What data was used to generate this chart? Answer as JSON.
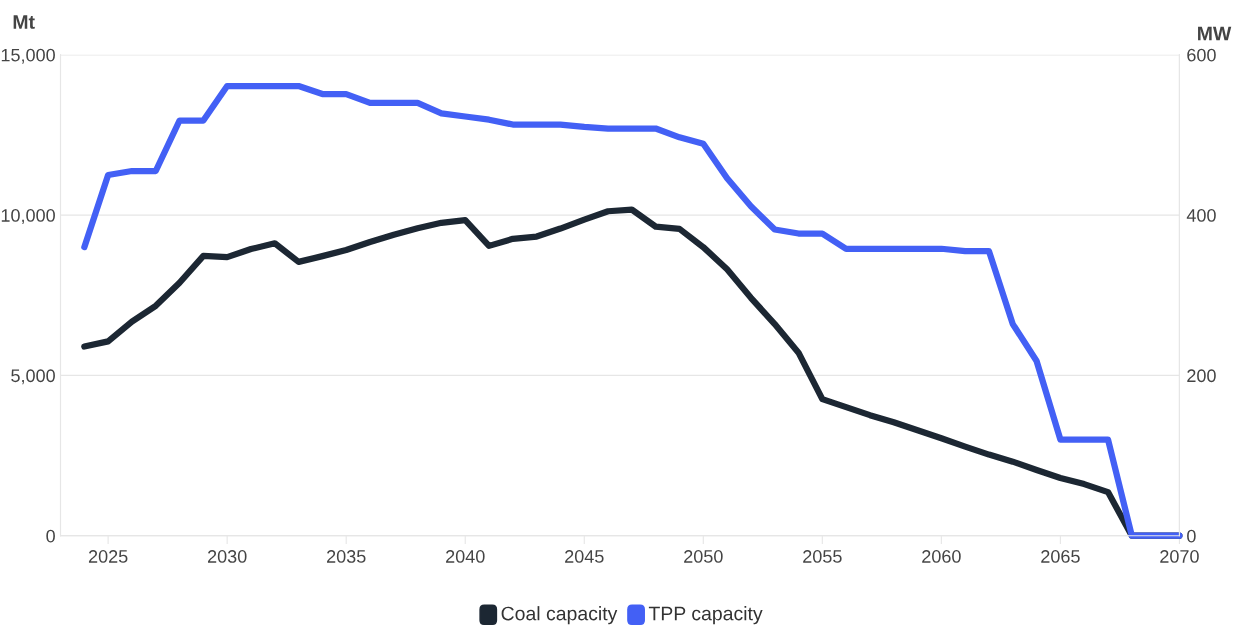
{
  "chart_data": {
    "type": "line",
    "ylabel": "Mt",
    "y2label": "MW",
    "x": [
      2024,
      2025,
      2026,
      2027,
      2028,
      2029,
      2030,
      2031,
      2032,
      2033,
      2034,
      2035,
      2036,
      2037,
      2038,
      2039,
      2040,
      2041,
      2042,
      2043,
      2044,
      2045,
      2046,
      2047,
      2048,
      2049,
      2050,
      2051,
      2052,
      2053,
      2054,
      2055,
      2056,
      2057,
      2058,
      2059,
      2060,
      2061,
      2062,
      2063,
      2064,
      2065,
      2066,
      2067,
      2068,
      2069,
      2070
    ],
    "series": [
      {
        "name": "Coal capacity",
        "color": "#1c2733",
        "values": [
          5900,
          6060,
          6680,
          7170,
          7890,
          8730,
          8690,
          8940,
          9120,
          8540,
          8720,
          8910,
          9160,
          9390,
          9590,
          9760,
          9840,
          9040,
          9260,
          9330,
          9580,
          9860,
          10120,
          10170,
          9640,
          9570,
          9000,
          8310,
          7420,
          6600,
          5710,
          4260,
          4010,
          3760,
          3540,
          3290,
          3040,
          2780,
          2530,
          2310,
          2050,
          1800,
          1610,
          1360,
          0,
          0,
          0
        ]
      },
      {
        "name": "TPP capacity",
        "color": "#4360f5",
        "axis": "y2",
        "values": [
          360,
          450,
          455,
          455,
          518,
          518,
          561,
          561,
          561,
          561,
          551,
          551,
          540,
          540,
          540,
          527,
          523,
          519,
          513,
          513,
          513,
          510,
          508,
          508,
          508,
          497,
          489,
          446,
          411,
          382,
          377,
          377,
          358,
          358,
          358,
          358,
          358,
          355,
          355,
          264,
          218,
          120,
          120,
          120,
          0,
          0,
          0
        ]
      }
    ],
    "xlim": [
      2023,
      2070
    ],
    "xticks": [
      2025,
      2030,
      2035,
      2040,
      2045,
      2050,
      2055,
      2060,
      2065,
      2070
    ],
    "ylim": [
      0,
      15000
    ],
    "yticks": [
      {
        "value": 0,
        "label": "0"
      },
      {
        "value": 5000,
        "label": "5,000"
      },
      {
        "value": 10000,
        "label": "10,000"
      },
      {
        "value": 15000,
        "label": "15,000"
      }
    ],
    "y2lim": [
      0,
      600
    ],
    "y2ticks": [
      0,
      200,
      400,
      600
    ],
    "grid": "y",
    "legend": "bottom",
    "marker": "none",
    "line_style": "solid"
  }
}
